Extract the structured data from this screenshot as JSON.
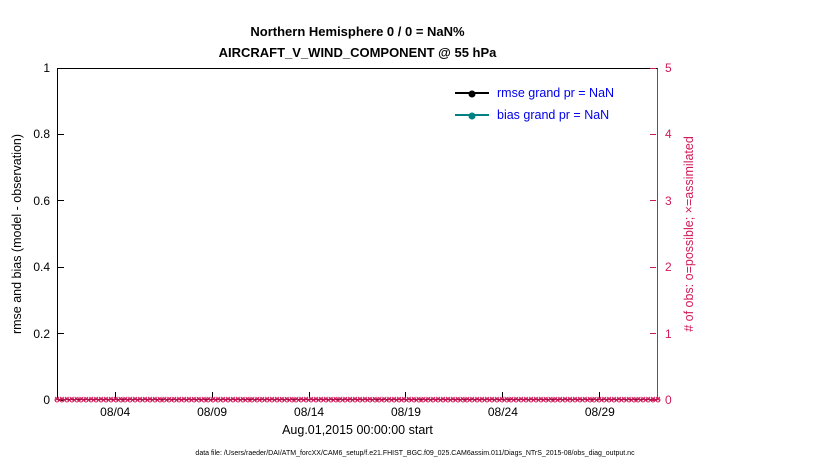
{
  "figure": {
    "title_line1": "Northern Hemisphere 0 / 0 = NaN%",
    "title_line2": "AIRCRAFT_V_WIND_COMPONENT @ 55 hPa",
    "footer": "data file: /Users/raeder/DAI/ATM_forcXX/CAM6_setup/f.e21.FHIST_BGC.f09_025.CAM6assim.011/Diags_NTrS_2015-08/obs_diag_output.nc"
  },
  "chart_data": {
    "type": "line",
    "title": "Northern Hemisphere 0 / 0 = NaN%",
    "subtitle": "AIRCRAFT_V_WIND_COMPONENT @ 55 hPa",
    "xlabel": "Aug.01,2015 00:00:00 start",
    "ylabel_left": "rmse and bias (model - observation)",
    "ylabel_right": "# of obs: o=possible; ×=assimilated",
    "x_axis": {
      "start_label": "Aug.01,2015 00:00:00",
      "span_days": 31,
      "ticks": [
        {
          "label": "08/04",
          "day": 4
        },
        {
          "label": "08/09",
          "day": 9
        },
        {
          "label": "08/14",
          "day": 14
        },
        {
          "label": "08/19",
          "day": 19
        },
        {
          "label": "08/24",
          "day": 24
        },
        {
          "label": "08/29",
          "day": 29
        }
      ]
    },
    "y_left": {
      "min": 0,
      "max": 1,
      "ticks": [
        "0",
        "0.2",
        "0.4",
        "0.6",
        "0.8",
        "1"
      ],
      "grid": false
    },
    "y_right": {
      "min": 0,
      "max": 5,
      "ticks": [
        "0",
        "1",
        "2",
        "3",
        "4",
        "5"
      ]
    },
    "legend": [
      {
        "label": "rmse grand pr = NaN",
        "color": "#000000"
      },
      {
        "label": "bias grand pr = NaN",
        "color": "#008080"
      }
    ],
    "legend_position": "upper right inside",
    "series": [
      {
        "name": "rmse",
        "axis": "left",
        "color": "#000000",
        "values": [],
        "note": "no points plotted (grand pr = NaN)"
      },
      {
        "name": "bias",
        "axis": "left",
        "color": "#008080",
        "values": [],
        "note": "no points plotted (grand pr = NaN)"
      },
      {
        "name": "possible obs (o)",
        "axis": "right",
        "color": "#D01A5A",
        "marker": "o",
        "constant_value": 0,
        "n_points": 124
      },
      {
        "name": "assimilated obs (×)",
        "axis": "right",
        "color": "#D01A5A",
        "marker": "×",
        "constant_value": 0,
        "n_points": 124
      }
    ],
    "colors": {
      "right_axis": "#D01A5A",
      "legend_text": "#0000EE",
      "rmse": "#000000",
      "bias": "#008080"
    }
  }
}
